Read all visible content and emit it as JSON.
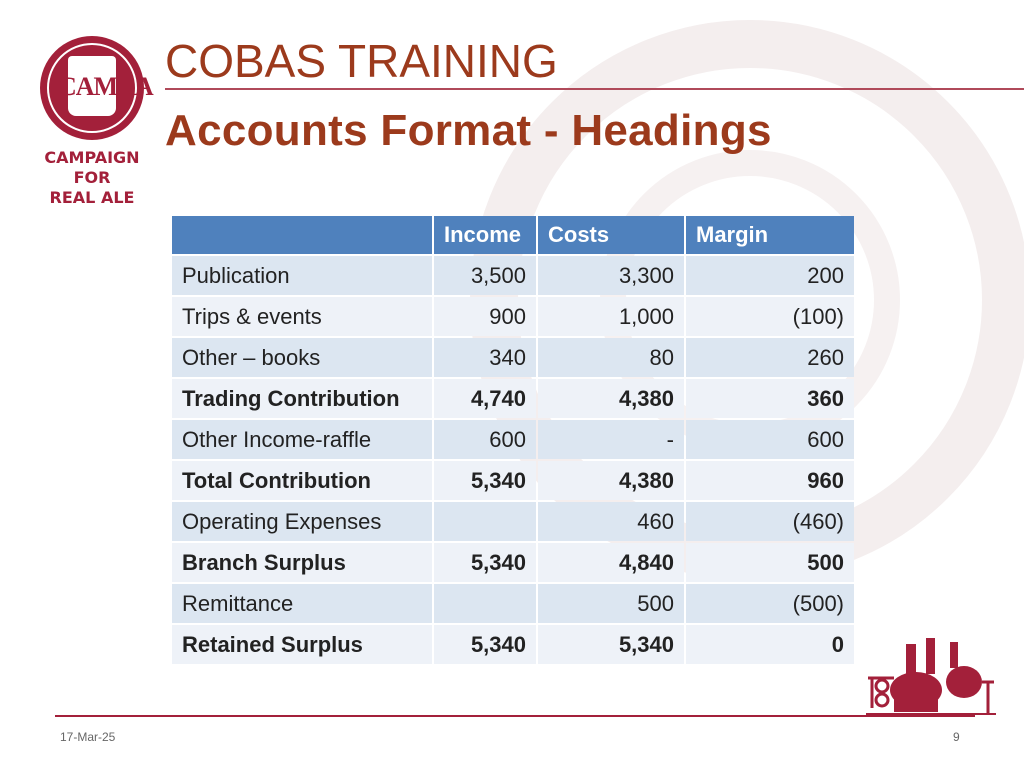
{
  "logo": {
    "tankard_text": "CAMRA",
    "lines": [
      "CAMPAIGN",
      "FOR",
      "REAL ALE"
    ]
  },
  "title": "COBAS TRAINING",
  "subtitle": "Accounts Format - Headings",
  "table": {
    "headers": [
      "",
      "Income",
      "Costs",
      "Margin"
    ],
    "rows": [
      {
        "label": "Publication",
        "income": "3,500",
        "costs": "3,300",
        "margin": "200",
        "bold": false
      },
      {
        "label": "Trips & events",
        "income": "900",
        "costs": "1,000",
        "margin": "(100)",
        "bold": false
      },
      {
        "label": "Other – books",
        "income": "340",
        "costs": "80",
        "margin": "260",
        "bold": false
      },
      {
        "label": "Trading Contribution",
        "income": "4,740",
        "costs": "4,380",
        "margin": "360",
        "bold": true
      },
      {
        "label": "Other Income-raffle",
        "income": "600",
        "costs": "-",
        "margin": "600",
        "bold": false
      },
      {
        "label": "Total Contribution",
        "income": "5,340",
        "costs": "4,380",
        "margin": "960",
        "bold": true
      },
      {
        "label": "Operating Expenses",
        "income": "",
        "costs": "460",
        "margin": "(460)",
        "bold": false
      },
      {
        "label": "Branch Surplus",
        "income": "5,340",
        "costs": "4,840",
        "margin": "500",
        "bold": true
      },
      {
        "label": "Remittance",
        "income": "",
        "costs": "500",
        "margin": "(500)",
        "bold": false
      },
      {
        "label": "Retained Surplus",
        "income": "5,340",
        "costs": "5,340",
        "margin": "0",
        "bold": true
      }
    ]
  },
  "footer": {
    "date": "17-Mar-25",
    "page": "9"
  },
  "colors": {
    "brand": "#a3203a",
    "title": "#9c3a1c",
    "header": "#4f81bd",
    "row_odd": "#dce6f1",
    "row_even": "#eef2f8"
  }
}
